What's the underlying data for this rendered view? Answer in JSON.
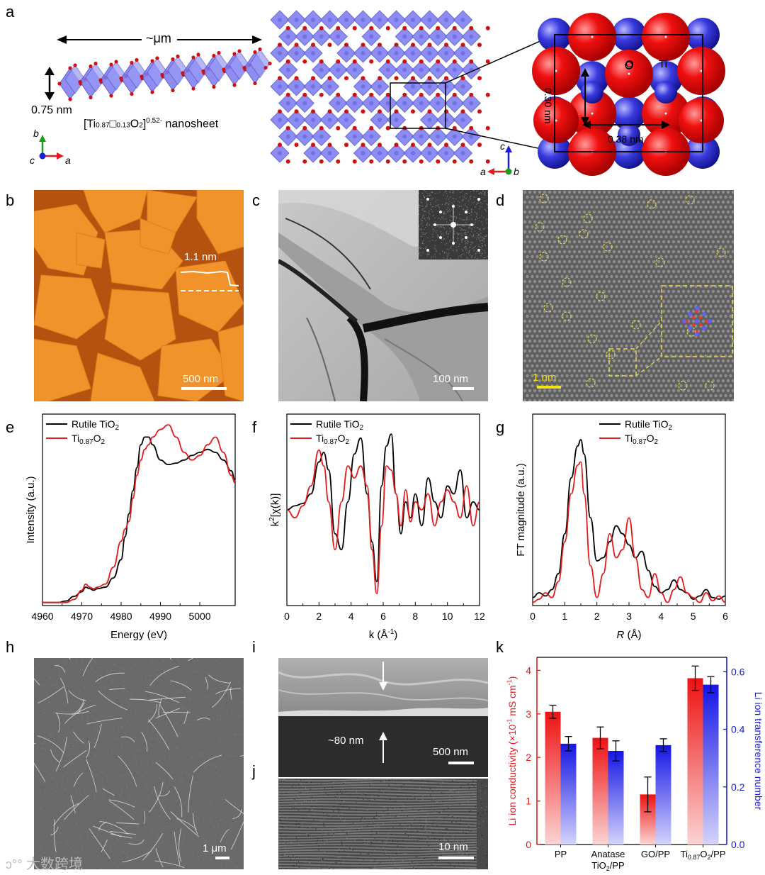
{
  "panels": {
    "a": {
      "label": "a",
      "width_label": "~μm",
      "thickness_label": "0.75 nm",
      "nanosheet_label": "[Ti0.87□0.13O2]0.52- nanosheet",
      "axes_left": {
        "b": "b",
        "c": "c",
        "a": "a"
      },
      "axes_mid": {
        "c": "c",
        "a": "a",
        "b": "b"
      },
      "atom_O": "O",
      "atom_Ti": "Ti",
      "dist1": "0.30 nm",
      "dist2": "0.38 nm"
    },
    "b": {
      "label": "b",
      "height_label": "1.1 nm",
      "scale": "500 nm"
    },
    "c": {
      "label": "c",
      "scale": "100 nm"
    },
    "d": {
      "label": "d",
      "scale": "1 nm"
    },
    "e": {
      "label": "e"
    },
    "f": {
      "label": "f"
    },
    "g": {
      "label": "g"
    },
    "h": {
      "label": "h",
      "scale": "1 μm"
    },
    "i": {
      "label": "i",
      "thickness": "~80 nm",
      "scale": "500 nm"
    },
    "j": {
      "label": "j",
      "scale": "10 nm"
    },
    "k": {
      "label": "k"
    }
  },
  "watermark": "大数跨境",
  "colors": {
    "red": "#e41a1c",
    "blue": "#1c1cd6",
    "black": "#000000",
    "afm_orange": "#f08c1e",
    "afm_dark": "#b2500d"
  },
  "chart_data": [
    {
      "id": "e",
      "type": "line",
      "xlabel": "Energy (eV)",
      "ylabel": "Intensity (a.u.)",
      "xlim": [
        4960,
        5009
      ],
      "ylim": [
        0,
        1.25
      ],
      "xticks": [
        4960,
        4970,
        4980,
        4990,
        5000
      ],
      "legend": [
        "Rutile TiO2",
        "Ti0.87O2"
      ],
      "series": [
        {
          "name": "Rutile TiO2",
          "color": "#000000",
          "x": [
            4960,
            4964,
            4966,
            4968,
            4970,
            4971,
            4972,
            4973,
            4974,
            4976,
            4978,
            4980,
            4981,
            4982,
            4983,
            4984,
            4985,
            4986,
            4987,
            4988,
            4990,
            4992,
            4994,
            4996,
            4998,
            5000,
            5002,
            5004,
            5006,
            5008,
            5009
          ],
          "y": [
            0.02,
            0.02,
            0.03,
            0.06,
            0.09,
            0.12,
            0.11,
            0.1,
            0.11,
            0.12,
            0.18,
            0.3,
            0.45,
            0.6,
            0.75,
            0.9,
            1.05,
            1.1,
            1.1,
            1.05,
            0.95,
            0.92,
            0.93,
            0.95,
            0.98,
            1.0,
            1.02,
            1.0,
            0.95,
            0.88,
            0.82
          ]
        },
        {
          "name": "Ti0.87O2",
          "color": "#e41a1c",
          "x": [
            4960,
            4964,
            4966,
            4968,
            4970,
            4971,
            4972,
            4973,
            4974,
            4976,
            4978,
            4980,
            4981,
            4982,
            4983,
            4984,
            4985,
            4986,
            4987,
            4988,
            4990,
            4992,
            4994,
            4996,
            4998,
            5000,
            5002,
            5004,
            5006,
            5008,
            5009
          ],
          "y": [
            0.02,
            0.02,
            0.02,
            0.04,
            0.1,
            0.14,
            0.12,
            0.11,
            0.12,
            0.14,
            0.25,
            0.42,
            0.5,
            0.55,
            0.7,
            0.85,
            0.95,
            1.02,
            1.05,
            1.1,
            1.15,
            1.18,
            1.1,
            1.0,
            0.95,
            0.98,
            1.05,
            1.1,
            1.0,
            0.85,
            0.8
          ]
        }
      ]
    },
    {
      "id": "f",
      "type": "line",
      "xlabel": "k (Å-1)",
      "ylabel": "k2[χ(k)]",
      "xlim": [
        0,
        12
      ],
      "ylim": [
        -1.2,
        1.2
      ],
      "xticks": [
        0,
        2,
        4,
        6,
        8,
        10,
        12
      ],
      "legend": [
        "Rutile TiO2",
        "Ti0.87O2"
      ],
      "series": [
        {
          "name": "Rutile TiO2",
          "color": "#000000",
          "x": [
            0,
            0.5,
            1,
            1.5,
            2,
            2.3,
            2.6,
            3,
            3.4,
            3.8,
            4.2,
            4.6,
            5,
            5.3,
            5.6,
            5.9,
            6.2,
            6.5,
            6.8,
            7.1,
            7.4,
            7.7,
            8,
            8.4,
            8.8,
            9.2,
            9.6,
            10,
            10.4,
            10.8,
            11.2,
            11.6,
            12
          ],
          "y": [
            0,
            0.05,
            0.08,
            0.2,
            0.6,
            0.72,
            0.5,
            -0.3,
            -0.5,
            0.1,
            0.7,
            0.9,
            0.2,
            -0.4,
            -0.9,
            0.3,
            0.8,
            0.95,
            0.2,
            -0.3,
            0.1,
            -0.1,
            0.2,
            -0.2,
            0.4,
            0.1,
            -0.1,
            0.3,
            0.2,
            0.5,
            -0.1,
            0.1,
            0
          ]
        },
        {
          "name": "Ti0.87O2",
          "color": "#e41a1c",
          "x": [
            0,
            0.5,
            1,
            1.5,
            2,
            2.3,
            2.6,
            3,
            3.4,
            3.8,
            4.2,
            4.6,
            5,
            5.3,
            5.6,
            5.9,
            6.2,
            6.5,
            6.8,
            7.1,
            7.4,
            7.7,
            8,
            8.4,
            8.8,
            9.2,
            9.6,
            10,
            10.4,
            10.8,
            11.2,
            11.6,
            12
          ],
          "y": [
            0,
            -0.1,
            0.05,
            0.3,
            0.75,
            0.55,
            0.1,
            -0.5,
            0.1,
            0.55,
            0.4,
            0.55,
            0.3,
            -0.5,
            -1.05,
            -0.2,
            0.55,
            0.5,
            0.2,
            -0.2,
            0.25,
            -0.15,
            0.1,
            0,
            0.2,
            -0.2,
            0.1,
            0.25,
            0.1,
            -0.1,
            0.3,
            -0.2,
            0.1
          ]
        }
      ]
    },
    {
      "id": "g",
      "type": "line",
      "xlabel": "R (Å)",
      "ylabel": "FT magnitude (a.u.)",
      "xlim": [
        0,
        6
      ],
      "ylim": [
        0,
        1.2
      ],
      "xticks": [
        0,
        1,
        2,
        3,
        4,
        5,
        6
      ],
      "legend": [
        "Rutile TiO2",
        "Ti0.87O2"
      ],
      "series": [
        {
          "name": "Rutile TiO2",
          "color": "#000000",
          "x": [
            0,
            0.2,
            0.4,
            0.6,
            0.8,
            1.0,
            1.2,
            1.4,
            1.5,
            1.6,
            1.8,
            2.0,
            2.2,
            2.4,
            2.6,
            2.8,
            3.0,
            3.2,
            3.4,
            3.6,
            3.8,
            4.0,
            4.2,
            4.4,
            4.6,
            4.8,
            5.0,
            5.2,
            5.4,
            5.6,
            5.8,
            6.0
          ],
          "y": [
            0.05,
            0.08,
            0.06,
            0.1,
            0.2,
            0.45,
            0.8,
            1.0,
            1.04,
            0.95,
            0.55,
            0.28,
            0.3,
            0.4,
            0.5,
            0.45,
            0.38,
            0.3,
            0.34,
            0.22,
            0.12,
            0.08,
            0.1,
            0.16,
            0.1,
            0.08,
            0.04,
            0.06,
            0.1,
            0.05,
            0.04,
            0.06
          ]
        },
        {
          "name": "Ti0.87O2",
          "color": "#e41a1c",
          "x": [
            0,
            0.2,
            0.4,
            0.6,
            0.8,
            1.0,
            1.2,
            1.4,
            1.5,
            1.6,
            1.8,
            2.0,
            2.2,
            2.4,
            2.6,
            2.8,
            3.0,
            3.2,
            3.4,
            3.6,
            3.8,
            4.0,
            4.2,
            4.4,
            4.6,
            4.8,
            5.0,
            5.2,
            5.4,
            5.6,
            5.8,
            6.0
          ],
          "y": [
            0.02,
            0.04,
            0.08,
            0.05,
            0.15,
            0.4,
            0.7,
            0.88,
            0.9,
            0.7,
            0.25,
            0.05,
            0.2,
            0.45,
            0.3,
            0.35,
            0.55,
            0.3,
            0.1,
            0.05,
            0.2,
            0.08,
            0.02,
            0.1,
            0.18,
            0.08,
            0.05,
            0.02,
            0.08,
            0.03,
            0.06,
            0.02
          ]
        }
      ]
    },
    {
      "id": "k",
      "type": "bar",
      "categories": [
        "PP",
        "Anatase TiO2/PP",
        "GO/PP",
        "Ti0.87O2/PP"
      ],
      "ylabel_left": "Li ion conductivity (×10-1 mS cm-1)",
      "ylabel_right": "Li ion transference number",
      "ylim_left": [
        0,
        4.3
      ],
      "yticks_left": [
        0,
        1,
        2,
        3,
        4
      ],
      "ylim_right": [
        0,
        0.65
      ],
      "yticks_right": [
        0.0,
        0.2,
        0.4,
        0.6
      ],
      "series": [
        {
          "name": "Li ion conductivity",
          "axis": "left",
          "color": "#e41a1c",
          "values": [
            3.05,
            2.45,
            1.15,
            3.82
          ],
          "errors": [
            0.15,
            0.25,
            0.4,
            0.28
          ]
        },
        {
          "name": "Li ion transference number",
          "axis": "right",
          "color": "#1c1cd6",
          "values": [
            0.35,
            0.325,
            0.345,
            0.555
          ],
          "errors": [
            0.025,
            0.035,
            0.022,
            0.028
          ]
        }
      ]
    }
  ]
}
